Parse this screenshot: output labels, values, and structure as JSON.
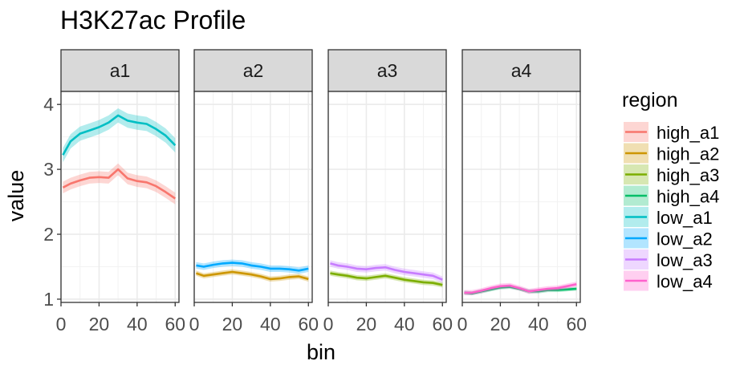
{
  "chart_data": {
    "type": "line",
    "title": "H3K27ac Profile",
    "xlabel": "bin",
    "ylabel": "value",
    "xlim": [
      0,
      62
    ],
    "ylim": [
      0.95,
      4.2
    ],
    "x_ticks": [
      0,
      20,
      40,
      60
    ],
    "x_tick_labels": [
      "0",
      "20",
      "40",
      "60"
    ],
    "y_ticks": [
      1,
      2,
      3,
      4
    ],
    "y_tick_labels": [
      "1",
      "2",
      "3",
      "4"
    ],
    "grid": true,
    "legend": {
      "title": "region",
      "position": "right",
      "entries": [
        {
          "key": "high_a1",
          "label": "high_a1",
          "color": "#F8766D"
        },
        {
          "key": "high_a2",
          "label": "high_a2",
          "color": "#CD9600"
        },
        {
          "key": "high_a3",
          "label": "high_a3",
          "color": "#7CAE00"
        },
        {
          "key": "high_a4",
          "label": "high_a4",
          "color": "#00BE67"
        },
        {
          "key": "low_a1",
          "label": "low_a1",
          "color": "#00BFC4"
        },
        {
          "key": "low_a2",
          "label": "low_a2",
          "color": "#00A9FF"
        },
        {
          "key": "low_a3",
          "label": "low_a3",
          "color": "#C77CFF"
        },
        {
          "key": "low_a4",
          "label": "low_a4",
          "color": "#FF61CC"
        }
      ]
    },
    "x": [
      1,
      5,
      10,
      15,
      20,
      25,
      30,
      35,
      40,
      45,
      50,
      55,
      60
    ],
    "panels": [
      {
        "label": "a1",
        "series": [
          {
            "name": "high_a1",
            "color": "#F8766D",
            "band": 0.09,
            "values": [
              2.72,
              2.78,
              2.83,
              2.87,
              2.88,
              2.87,
              3.0,
              2.86,
              2.82,
              2.8,
              2.74,
              2.65,
              2.55
            ]
          },
          {
            "name": "low_a1",
            "color": "#00BFC4",
            "band": 0.11,
            "values": [
              3.22,
              3.43,
              3.55,
              3.6,
              3.65,
              3.72,
              3.83,
              3.75,
              3.72,
              3.7,
              3.62,
              3.52,
              3.37
            ]
          }
        ]
      },
      {
        "label": "a2",
        "series": [
          {
            "name": "high_a2",
            "color": "#CD9600",
            "band": 0.04,
            "values": [
              1.4,
              1.36,
              1.38,
              1.4,
              1.42,
              1.4,
              1.38,
              1.35,
              1.31,
              1.32,
              1.34,
              1.35,
              1.31
            ]
          },
          {
            "name": "low_a2",
            "color": "#00A9FF",
            "band": 0.05,
            "values": [
              1.52,
              1.5,
              1.53,
              1.55,
              1.56,
              1.55,
              1.52,
              1.5,
              1.47,
              1.47,
              1.46,
              1.44,
              1.47
            ]
          }
        ]
      },
      {
        "label": "a3",
        "series": [
          {
            "name": "high_a3",
            "color": "#7CAE00",
            "band": 0.04,
            "values": [
              1.4,
              1.38,
              1.36,
              1.33,
              1.32,
              1.34,
              1.36,
              1.33,
              1.3,
              1.28,
              1.26,
              1.25,
              1.22
            ]
          },
          {
            "name": "low_a3",
            "color": "#C77CFF",
            "band": 0.05,
            "values": [
              1.55,
              1.52,
              1.5,
              1.47,
              1.46,
              1.48,
              1.49,
              1.45,
              1.42,
              1.4,
              1.38,
              1.36,
              1.3
            ]
          }
        ]
      },
      {
        "label": "a4",
        "series": [
          {
            "name": "high_a4",
            "color": "#00BE67",
            "band": 0.03,
            "values": [
              1.1,
              1.09,
              1.12,
              1.15,
              1.18,
              1.19,
              1.16,
              1.12,
              1.12,
              1.14,
              1.14,
              1.15,
              1.16
            ]
          },
          {
            "name": "low_a4",
            "color": "#FF61CC",
            "band": 0.04,
            "values": [
              1.1,
              1.1,
              1.13,
              1.17,
              1.2,
              1.21,
              1.17,
              1.12,
              1.14,
              1.16,
              1.17,
              1.2,
              1.23
            ]
          }
        ]
      }
    ]
  }
}
